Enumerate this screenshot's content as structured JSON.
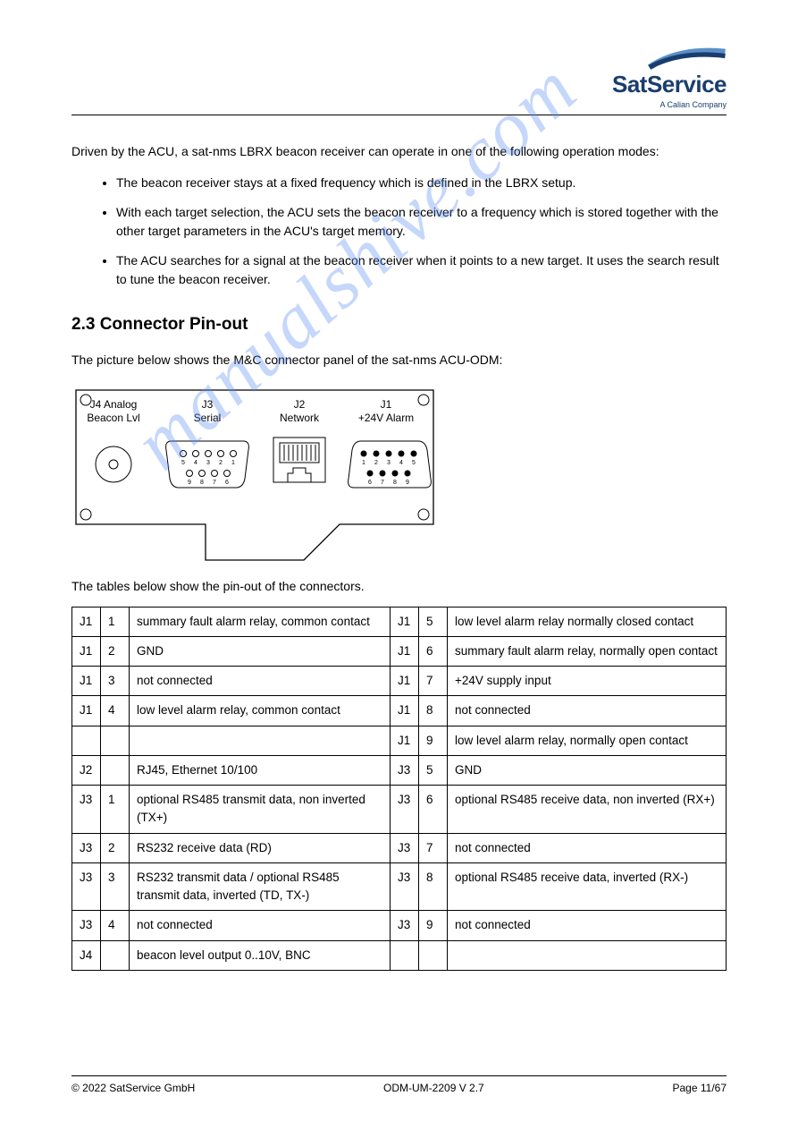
{
  "brand": {
    "name_a": "Sat",
    "name_b": "Service",
    "subtitle": "A Calian Company",
    "swoosh_color_dark": "#1a3d6d",
    "swoosh_color_light": "#5a8fc7"
  },
  "watermark": "manualshive.com",
  "content": {
    "intro": "Driven by the ACU, a sat-nms LBRX beacon receiver can operate in one of the following operation modes:",
    "bullets": [
      "The beacon receiver stays at a fixed frequency which is defined in the LBRX setup.",
      "With each target selection, the ACU sets the beacon receiver to a frequency which is stored together with the other target parameters in the ACU's target memory.",
      "The ACU searches for a signal at the beacon receiver when it points to a new target. It uses the search result to tune the beacon receiver."
    ],
    "section_title": "2.3 Connector Pin-out",
    "para1": "The picture below shows the M&C connector panel of the sat-nms ACU-ODM:",
    "para2": "The tables below show the pin-out of the connectors.",
    "diagram_labels": {
      "j4_line1": "J4 Analog",
      "j4_line2": "Beacon Lvl",
      "j3_line1": "J3",
      "j3_line2": "Serial",
      "j2_line1": "J2",
      "j2_line2": "Network",
      "j1_line1": "J1",
      "j1_line2": "+24V Alarm"
    },
    "pin_numbers_left": [
      "5",
      "4",
      "3",
      "2",
      "1",
      "9",
      "8",
      "7",
      "6"
    ],
    "pin_numbers_right": [
      "1",
      "2",
      "3",
      "4",
      "5",
      "6",
      "7",
      "8",
      "9"
    ]
  },
  "table": {
    "rows": [
      {
        "c1": "J1",
        "p1": "1",
        "d1": "summary fault alarm relay, common contact",
        "c2": "J1",
        "p2": "5",
        "d2": "low level alarm relay normally closed contact"
      },
      {
        "c1": "J1",
        "p1": "2",
        "d1": "GND",
        "c2": "J1",
        "p2": "6",
        "d2": "summary fault alarm relay, normally open contact"
      },
      {
        "c1": "J1",
        "p1": "3",
        "d1": "not connected",
        "c2": "J1",
        "p2": "7",
        "d2": "+24V supply input"
      },
      {
        "c1": "J1",
        "p1": "4",
        "d1": "low level alarm relay, common contact",
        "c2": "J1",
        "p2": "8",
        "d2": "not connected"
      },
      {
        "c1": "",
        "p1": "",
        "d1": "",
        "c2": "J1",
        "p2": "9",
        "d2": "low level alarm relay, normally open contact"
      },
      {
        "c1": "J2",
        "p1": "",
        "d1": "RJ45, Ethernet 10/100",
        "c2": "J3",
        "p2": "5",
        "d2": "GND"
      },
      {
        "c1": "J3",
        "p1": "1",
        "d1": "optional RS485 transmit data, non inverted (TX+)",
        "c2": "J3",
        "p2": "6",
        "d2": "optional RS485 receive data, non inverted (RX+)"
      },
      {
        "c1": "J3",
        "p1": "2",
        "d1": "RS232 receive data (RD)",
        "c2": "J3",
        "p2": "7",
        "d2": "not connected"
      },
      {
        "c1": "J3",
        "p1": "3",
        "d1": "RS232 transmit data / optional RS485 transmit data, inverted (TD, TX-)",
        "c2": "J3",
        "p2": "8",
        "d2": "optional RS485 receive data, inverted (RX-)"
      },
      {
        "c1": "J3",
        "p1": "4",
        "d1": "not connected",
        "c2": "J3",
        "p2": "9",
        "d2": "not connected"
      },
      {
        "c1": "J4",
        "p1": "",
        "d1": "beacon level output 0..10V, BNC",
        "c2": "",
        "p2": "",
        "d2": ""
      }
    ]
  },
  "footer": {
    "copyright": "© 2022 SatService GmbH",
    "doc_id": "ODM-UM-2209 V 2.7",
    "page": "Page 11/67"
  },
  "colors": {
    "text": "#000000",
    "border": "#000000",
    "watermark": "rgba(90,140,240,0.35)",
    "diagram_stroke": "#000000",
    "diagram_bg": "#ffffff"
  }
}
